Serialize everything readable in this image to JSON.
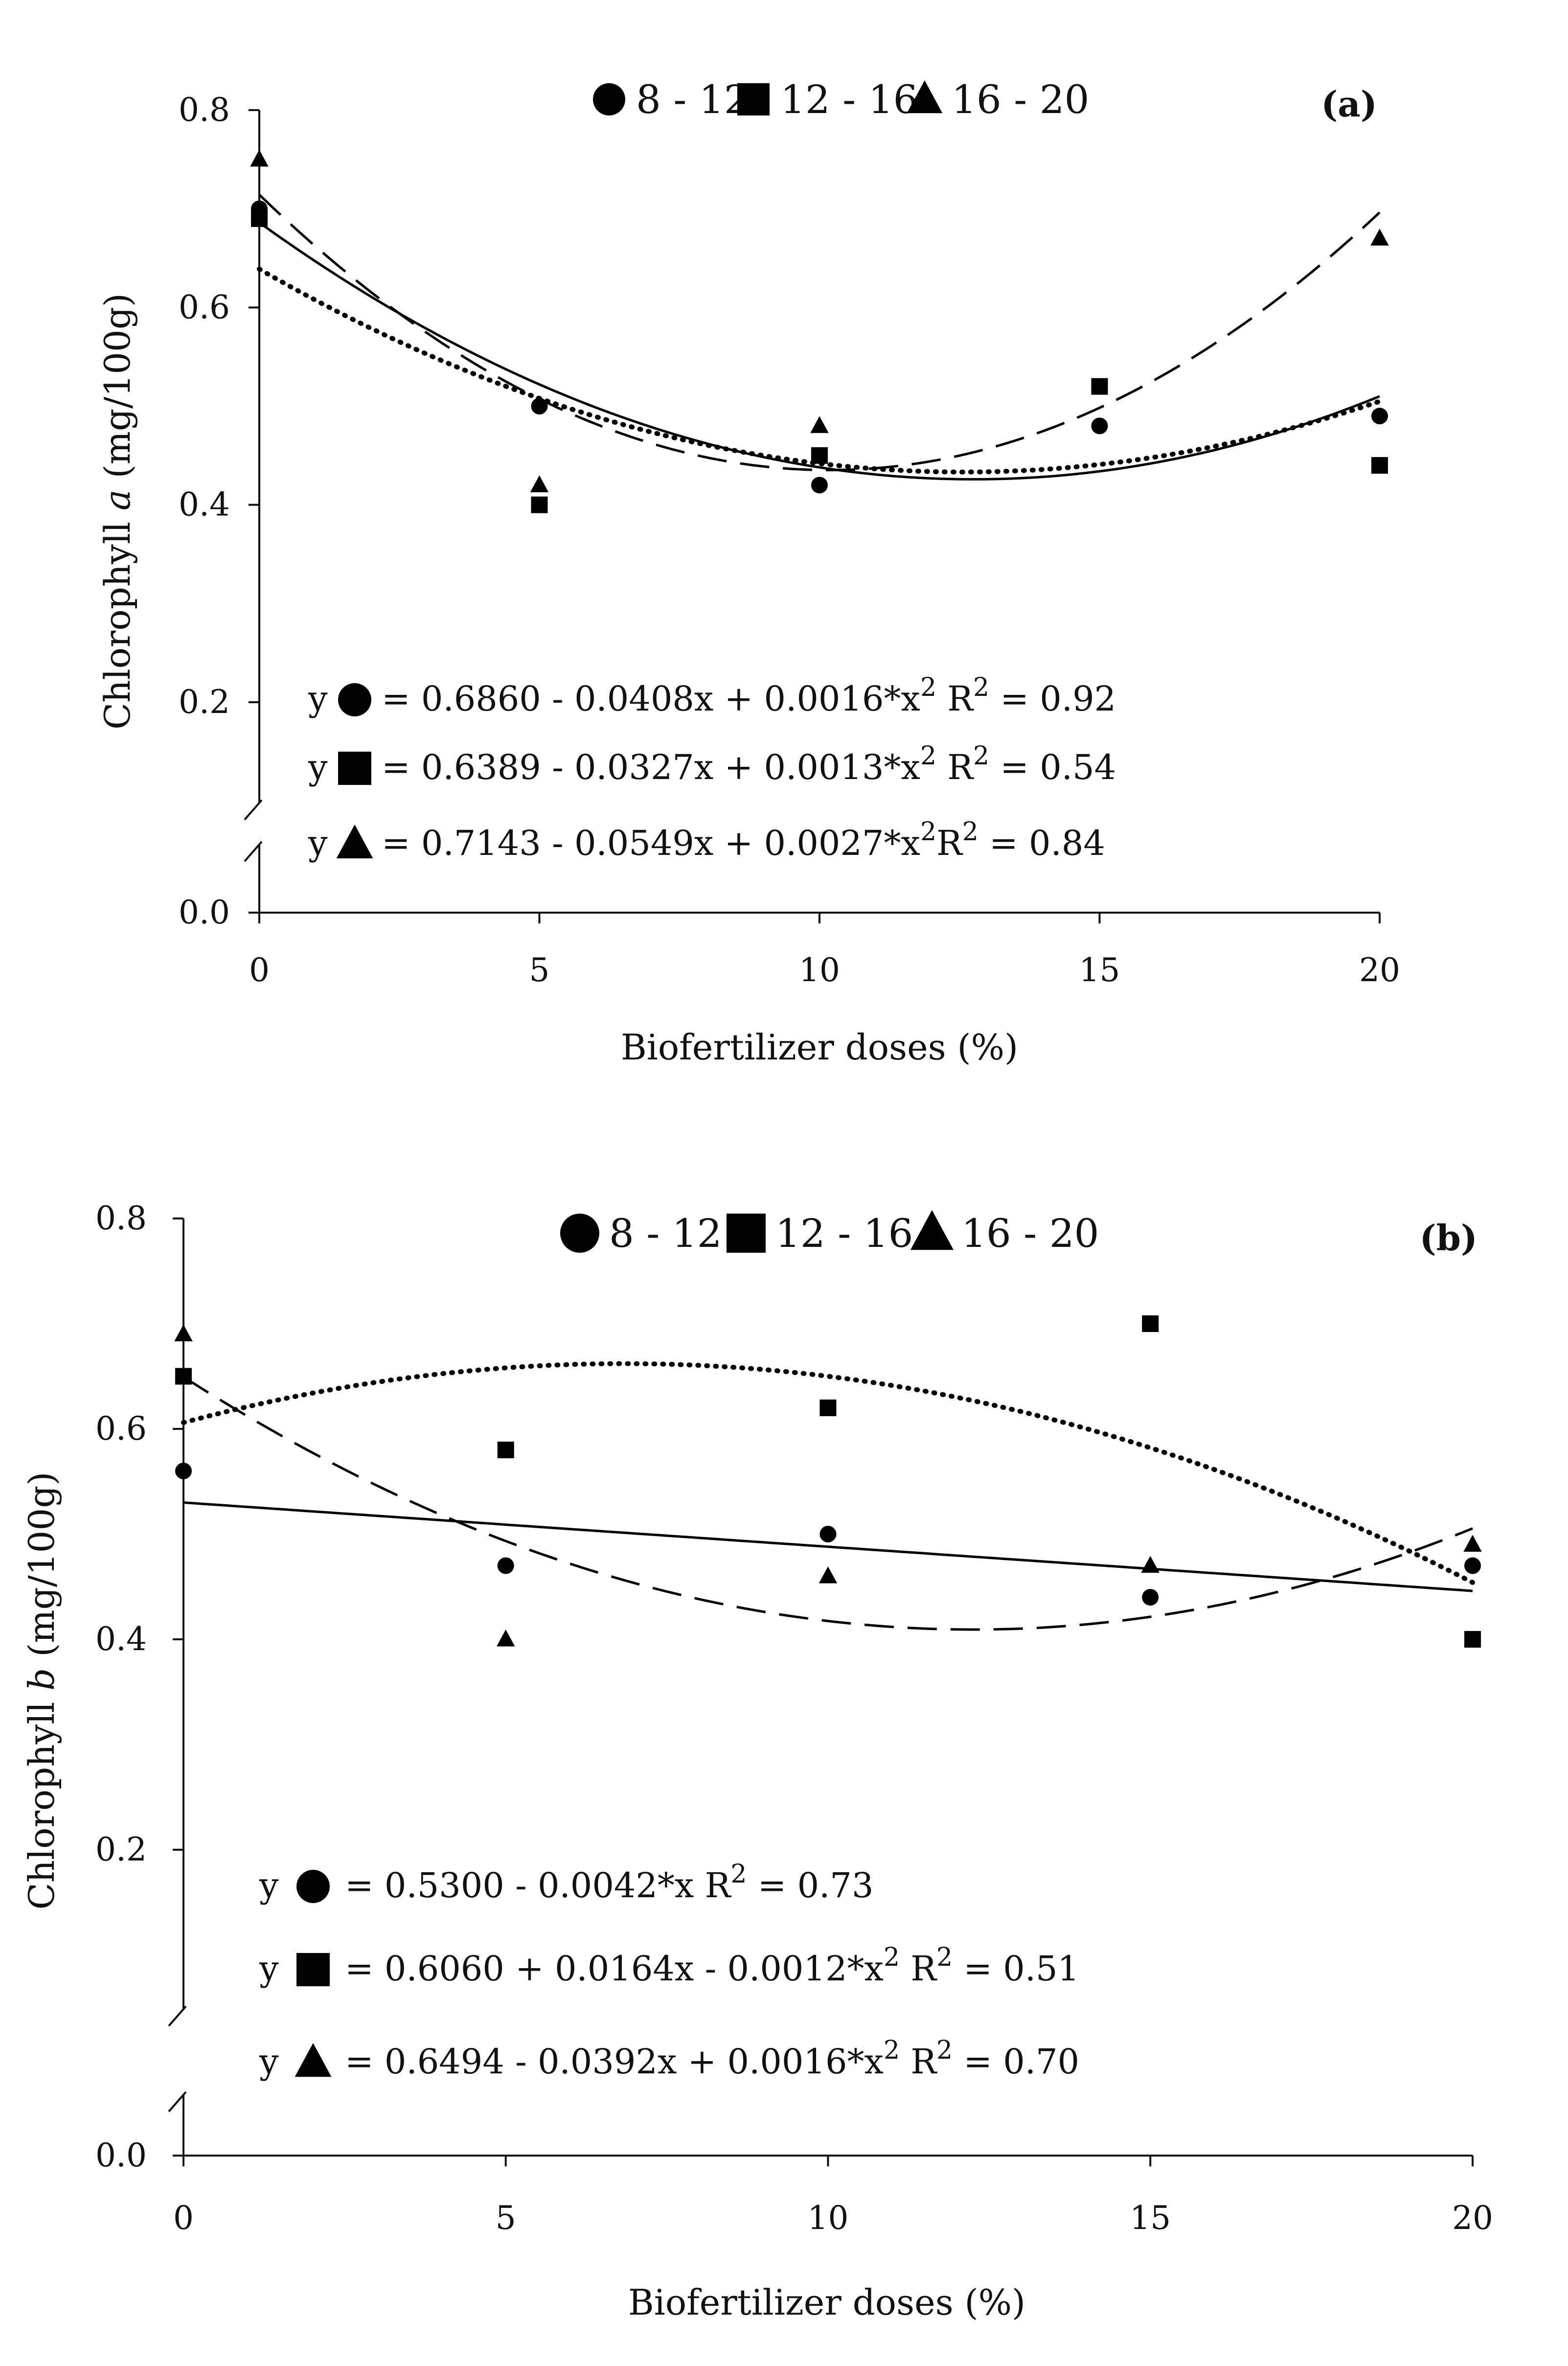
{
  "chart_data": [
    {
      "type": "scatter",
      "panel_label": "(a)",
      "ylabel_prefix": "Chlorophyll ",
      "ylabel_italic": "a",
      "ylabel_suffix": " (mg/100g)",
      "xlabel": "Biofertilizer doses (%)",
      "xlim": [
        0,
        20
      ],
      "ylim": [
        0,
        0.8
      ],
      "axis_break": true,
      "x_ticks": [
        "0",
        "5",
        "10",
        "15",
        "20"
      ],
      "y_ticks": [
        "0.0",
        "0.2",
        "0.4",
        "0.6",
        "0.8"
      ],
      "x": [
        0,
        5,
        10,
        15,
        20
      ],
      "series": [
        {
          "name": "8 - 12",
          "marker": "circle",
          "line": "solid",
          "values": [
            0.7,
            0.5,
            0.42,
            0.48,
            0.49
          ],
          "fit": [
            0.686,
            -0.0408,
            0.0016
          ],
          "equation_lead": "y",
          "equation": "= 0.6860 - 0.0408x + 0.0016*x",
          "equation_sup": "2",
          "r2_lead": " R",
          "r2_sup": "2",
          "r2_text": " = 0.92"
        },
        {
          "name": "12 - 16",
          "marker": "square",
          "line": "dotted",
          "values": [
            0.69,
            0.4,
            0.45,
            0.52,
            0.44
          ],
          "fit": [
            0.6389,
            -0.0327,
            0.0013
          ],
          "equation_lead": "y",
          "equation": " = 0.6389 - 0.0327x + 0.0013*x",
          "equation_sup": "2",
          "r2_lead": " R",
          "r2_sup": "2",
          "r2_text": " = 0.54"
        },
        {
          "name": "16 - 20",
          "marker": "triangle",
          "line": "dashed",
          "values": [
            0.75,
            0.42,
            0.48,
            null,
            0.67
          ],
          "fit": [
            0.7143,
            -0.0549,
            0.0027
          ],
          "equation_lead": "y",
          "equation": "= 0.7143 - 0.0549x + 0.0027*x",
          "equation_sup": "2",
          "r2_lead": "R",
          "r2_sup": "2",
          "r2_text": " = 0.84"
        }
      ]
    },
    {
      "type": "scatter",
      "panel_label": "(b)",
      "ylabel_prefix": "Chlorophyll ",
      "ylabel_italic": "b",
      "ylabel_suffix": " (mg/100g)",
      "xlabel": "Biofertilizer doses (%)",
      "xlim": [
        0,
        20
      ],
      "ylim": [
        0,
        0.8
      ],
      "axis_break": true,
      "x_ticks": [
        "0",
        "5",
        "10",
        "15",
        "20"
      ],
      "y_ticks": [
        "0.0",
        "0.2",
        "0.4",
        "0.6",
        "0.8"
      ],
      "x": [
        0,
        5,
        10,
        15,
        20
      ],
      "series": [
        {
          "name": "8 - 12",
          "marker": "circle",
          "line": "solid",
          "values": [
            0.56,
            0.47,
            0.5,
            0.44,
            0.47
          ],
          "fit": [
            0.53,
            -0.0042,
            0
          ],
          "equation_lead": "y",
          "equation": "= 0.5300 - 0.0042*x",
          "equation_sup": "",
          "r2_lead": " R",
          "r2_sup": "2",
          "r2_text": " = 0.73"
        },
        {
          "name": "12 - 16",
          "marker": "square",
          "line": "dotted",
          "values": [
            0.65,
            0.58,
            0.62,
            0.7,
            0.4
          ],
          "fit": [
            0.606,
            0.0164,
            -0.0012
          ],
          "equation_lead": "y",
          "equation": "= 0.6060 + 0.0164x - 0.0012*x",
          "equation_sup": "2",
          "r2_lead": " R",
          "r2_sup": "2",
          "r2_text": " = 0.51"
        },
        {
          "name": "16 - 20",
          "marker": "triangle",
          "line": "dashed",
          "values": [
            0.69,
            0.4,
            0.46,
            0.47,
            0.49
          ],
          "fit": [
            0.6494,
            -0.0392,
            0.0016
          ],
          "equation_lead": "y",
          "equation": "= 0.6494 - 0.0392x + 0.0016*x",
          "equation_sup": "2",
          "r2_lead": " R",
          "r2_sup": "2",
          "r2_text": " = 0.70"
        }
      ]
    }
  ]
}
